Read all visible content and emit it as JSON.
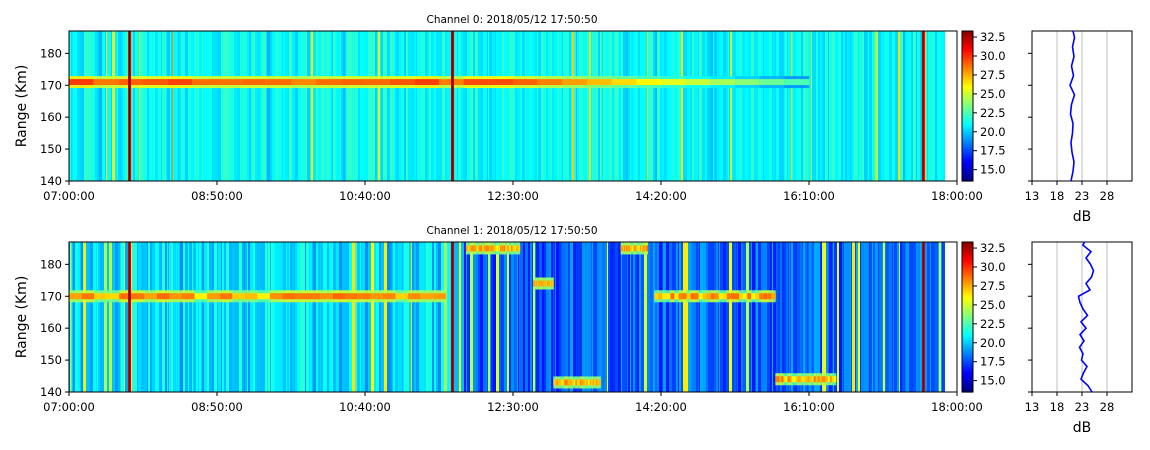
{
  "chart_data": [
    {
      "type": "heatmap",
      "title": "Channel 0: 2018/05/12 17:50:50",
      "xlabel": "",
      "ylabel": "Range (Km)",
      "x_tick_labels": [
        "07:00:00",
        "08:50:00",
        "10:40:00",
        "12:30:00",
        "14:20:00",
        "16:10:00",
        "18:00:00"
      ],
      "ylim": [
        140,
        187
      ],
      "y_ticks": [
        140,
        150,
        160,
        170,
        180
      ],
      "colorbar": {
        "ticks": [
          "15.0",
          "17.5",
          "20.0",
          "22.5",
          "25.0",
          "27.5",
          "30.0",
          "32.5"
        ],
        "range": [
          13.5,
          33.3
        ],
        "colormap": "jet"
      },
      "features": [
        {
          "label": "echo band",
          "time_start": "07:00:00",
          "time_end": "16:10:00",
          "range_km": 171
        }
      ],
      "strong_vertical_lines": [
        "07:45",
        "11:45",
        "17:35"
      ],
      "profile": {
        "xlabel": "dB",
        "x_tick_labels": [
          "13",
          "18",
          "23",
          "28"
        ],
        "xlim": [
          13,
          33
        ],
        "grid": true,
        "points": [
          [
            140,
            20.8
          ],
          [
            143,
            21.2
          ],
          [
            146,
            21.4
          ],
          [
            149,
            21.0
          ],
          [
            152,
            20.8
          ],
          [
            155,
            21.1
          ],
          [
            158,
            21.2
          ],
          [
            161,
            20.7
          ],
          [
            164,
            20.9
          ],
          [
            167,
            21.5
          ],
          [
            170,
            20.6
          ],
          [
            173,
            21.3
          ],
          [
            176,
            20.9
          ],
          [
            179,
            21.4
          ],
          [
            182,
            21.1
          ],
          [
            185,
            21.5
          ],
          [
            187,
            21.2
          ]
        ]
      }
    },
    {
      "type": "heatmap",
      "title": "Channel 1: 2018/05/12 17:50:50",
      "xlabel": "",
      "ylabel": "Range (Km)",
      "x_tick_labels": [
        "07:00:00",
        "08:50:00",
        "10:40:00",
        "12:30:00",
        "14:20:00",
        "16:10:00",
        "18:00:00"
      ],
      "ylim": [
        140,
        187
      ],
      "y_ticks": [
        140,
        150,
        160,
        170,
        180
      ],
      "colorbar": {
        "ticks": [
          "15.0",
          "17.5",
          "20.0",
          "22.5",
          "25.0",
          "27.5",
          "30.0",
          "32.5"
        ],
        "range": [
          13.5,
          33.3
        ],
        "colormap": "jet"
      },
      "features": [
        {
          "label": "echo band",
          "time_start": "07:00:00",
          "time_end": "11:40:00",
          "range_km": 170
        },
        {
          "label": "echo band",
          "time_start": "11:55:00",
          "time_end": "12:35:00",
          "range_km": 185
        },
        {
          "label": "echo band",
          "time_start": "12:45:00",
          "time_end": "13:00:00",
          "range_km": 174
        },
        {
          "label": "echo band",
          "time_start": "13:00:00",
          "time_end": "13:35:00",
          "range_km": 143
        },
        {
          "label": "echo band",
          "time_start": "13:50:00",
          "time_end": "14:10:00",
          "range_km": 185
        },
        {
          "label": "echo band",
          "time_start": "14:15:00",
          "time_end": "15:45:00",
          "range_km": 170
        },
        {
          "label": "echo band",
          "time_start": "15:45:00",
          "time_end": "16:30:00",
          "range_km": 144
        }
      ],
      "strong_vertical_lines": [
        "07:45",
        "11:45",
        "17:35"
      ],
      "profile": {
        "xlabel": "dB",
        "x_tick_labels": [
          "13",
          "18",
          "23",
          "28"
        ],
        "xlim": [
          13,
          33
        ],
        "grid": true,
        "points": [
          [
            140,
            25.0
          ],
          [
            142,
            24.2
          ],
          [
            144,
            22.8
          ],
          [
            146,
            23.3
          ],
          [
            148,
            24.0
          ],
          [
            150,
            22.9
          ],
          [
            152,
            23.2
          ],
          [
            154,
            22.5
          ],
          [
            156,
            23.4
          ],
          [
            158,
            22.6
          ],
          [
            160,
            23.8
          ],
          [
            162,
            22.8
          ],
          [
            164,
            24.1
          ],
          [
            166,
            23.2
          ],
          [
            168,
            22.6
          ],
          [
            170,
            22.3
          ],
          [
            172,
            24.6
          ],
          [
            174,
            23.8
          ],
          [
            176,
            24.9
          ],
          [
            178,
            25.3
          ],
          [
            180,
            24.7
          ],
          [
            182,
            23.8
          ],
          [
            184,
            24.8
          ],
          [
            186,
            23.2
          ],
          [
            187,
            23.5
          ]
        ]
      }
    }
  ]
}
